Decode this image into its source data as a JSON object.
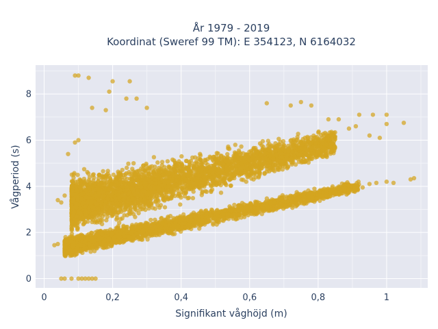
{
  "chart_data": {
    "type": "scatter",
    "title_lines": [
      "År 1979 - 2019",
      "Koordinat (Sweref 99 TM): E 354123, N 6164032"
    ],
    "xlabel": "Signifikant våghöjd (m)",
    "ylabel": "Vågperiod (s)",
    "xlim": [
      -0.025,
      1.12
    ],
    "ylim": [
      -0.4,
      9.25
    ],
    "x_ticks": [
      0,
      0.2,
      0.4,
      0.6,
      0.8,
      1
    ],
    "x_tick_labels": [
      "0",
      "0,2",
      "0,4",
      "0,6",
      "0,8",
      "1"
    ],
    "y_ticks": [
      0,
      2,
      4,
      6,
      8
    ],
    "y_tick_labels": [
      "0",
      "2",
      "4",
      "6",
      "8"
    ],
    "grid": true,
    "marker_color": "#d4a520",
    "plot_background": "#e5e7f0",
    "clusters": [
      {
        "band": "low",
        "x_range": [
          0.06,
          0.92
        ],
        "y_at_min": 1.35,
        "y_at_max": 4.0,
        "spread": 0.55
      },
      {
        "band": "high",
        "x_range": [
          0.08,
          0.85
        ],
        "y_at_min": 3.2,
        "y_at_max": 5.9,
        "spread": 1.5
      }
    ],
    "points": [
      {
        "x": 0.09,
        "y": 8.8
      },
      {
        "x": 0.1,
        "y": 8.8
      },
      {
        "x": 0.13,
        "y": 8.7
      },
      {
        "x": 0.2,
        "y": 8.55
      },
      {
        "x": 0.25,
        "y": 8.55
      },
      {
        "x": 0.19,
        "y": 8.1
      },
      {
        "x": 0.24,
        "y": 7.8
      },
      {
        "x": 0.27,
        "y": 7.8
      },
      {
        "x": 0.14,
        "y": 7.4
      },
      {
        "x": 0.18,
        "y": 7.3
      },
      {
        "x": 0.3,
        "y": 7.4
      },
      {
        "x": 0.92,
        "y": 7.1
      },
      {
        "x": 0.96,
        "y": 7.1
      },
      {
        "x": 1.0,
        "y": 7.1
      },
      {
        "x": 1.0,
        "y": 6.7
      },
      {
        "x": 1.05,
        "y": 6.75
      },
      {
        "x": 0.91,
        "y": 6.6
      },
      {
        "x": 0.95,
        "y": 6.2
      },
      {
        "x": 0.98,
        "y": 6.1
      },
      {
        "x": 0.89,
        "y": 6.5
      },
      {
        "x": 0.86,
        "y": 6.9
      },
      {
        "x": 0.83,
        "y": 6.9
      },
      {
        "x": 0.78,
        "y": 7.5
      },
      {
        "x": 0.72,
        "y": 7.5
      },
      {
        "x": 0.75,
        "y": 7.65
      },
      {
        "x": 0.65,
        "y": 7.6
      },
      {
        "x": 1.08,
        "y": 4.35
      },
      {
        "x": 1.07,
        "y": 4.3
      },
      {
        "x": 1.0,
        "y": 4.2
      },
      {
        "x": 1.02,
        "y": 4.15
      },
      {
        "x": 0.97,
        "y": 4.15
      },
      {
        "x": 0.95,
        "y": 4.1
      },
      {
        "x": 0.93,
        "y": 3.95
      },
      {
        "x": 0.05,
        "y": 0.0
      },
      {
        "x": 0.06,
        "y": 0.0
      },
      {
        "x": 0.08,
        "y": 0.0
      },
      {
        "x": 0.1,
        "y": 0.0
      },
      {
        "x": 0.11,
        "y": 0.0
      },
      {
        "x": 0.12,
        "y": 0.0
      },
      {
        "x": 0.13,
        "y": 0.0
      },
      {
        "x": 0.14,
        "y": 0.0
      },
      {
        "x": 0.15,
        "y": 0.0
      },
      {
        "x": 0.03,
        "y": 1.45
      },
      {
        "x": 0.04,
        "y": 1.5
      },
      {
        "x": 0.04,
        "y": 3.4
      },
      {
        "x": 0.05,
        "y": 3.3
      },
      {
        "x": 0.06,
        "y": 3.6
      },
      {
        "x": 0.07,
        "y": 5.4
      },
      {
        "x": 0.09,
        "y": 5.9
      },
      {
        "x": 0.1,
        "y": 6.0
      }
    ]
  }
}
